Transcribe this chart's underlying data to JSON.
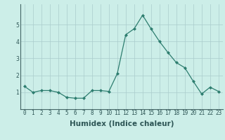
{
  "x": [
    0,
    1,
    2,
    3,
    4,
    5,
    6,
    7,
    8,
    9,
    10,
    11,
    12,
    13,
    14,
    15,
    16,
    17,
    18,
    19,
    20,
    21,
    22,
    23
  ],
  "y": [
    1.35,
    1.0,
    1.1,
    1.1,
    1.0,
    0.7,
    0.65,
    0.65,
    1.1,
    1.1,
    1.05,
    2.1,
    4.4,
    4.75,
    5.55,
    4.75,
    4.0,
    3.35,
    2.75,
    2.45,
    1.65,
    0.9,
    1.3,
    1.05
  ],
  "title": "",
  "xlabel": "Humidex (Indice chaleur)",
  "ylabel": "",
  "xlim": [
    -0.5,
    23.5
  ],
  "ylim": [
    0,
    6.2
  ],
  "yticks": [
    1,
    2,
    3,
    4,
    5
  ],
  "xticks": [
    0,
    1,
    2,
    3,
    4,
    5,
    6,
    7,
    8,
    9,
    10,
    11,
    12,
    13,
    14,
    15,
    16,
    17,
    18,
    19,
    20,
    21,
    22,
    23
  ],
  "line_color": "#2d7d6f",
  "marker": "D",
  "marker_size": 2.0,
  "bg_color": "#cceee8",
  "grid_color": "#aacccc",
  "xlabel_fontsize": 7.5,
  "tick_fontsize": 5.5
}
